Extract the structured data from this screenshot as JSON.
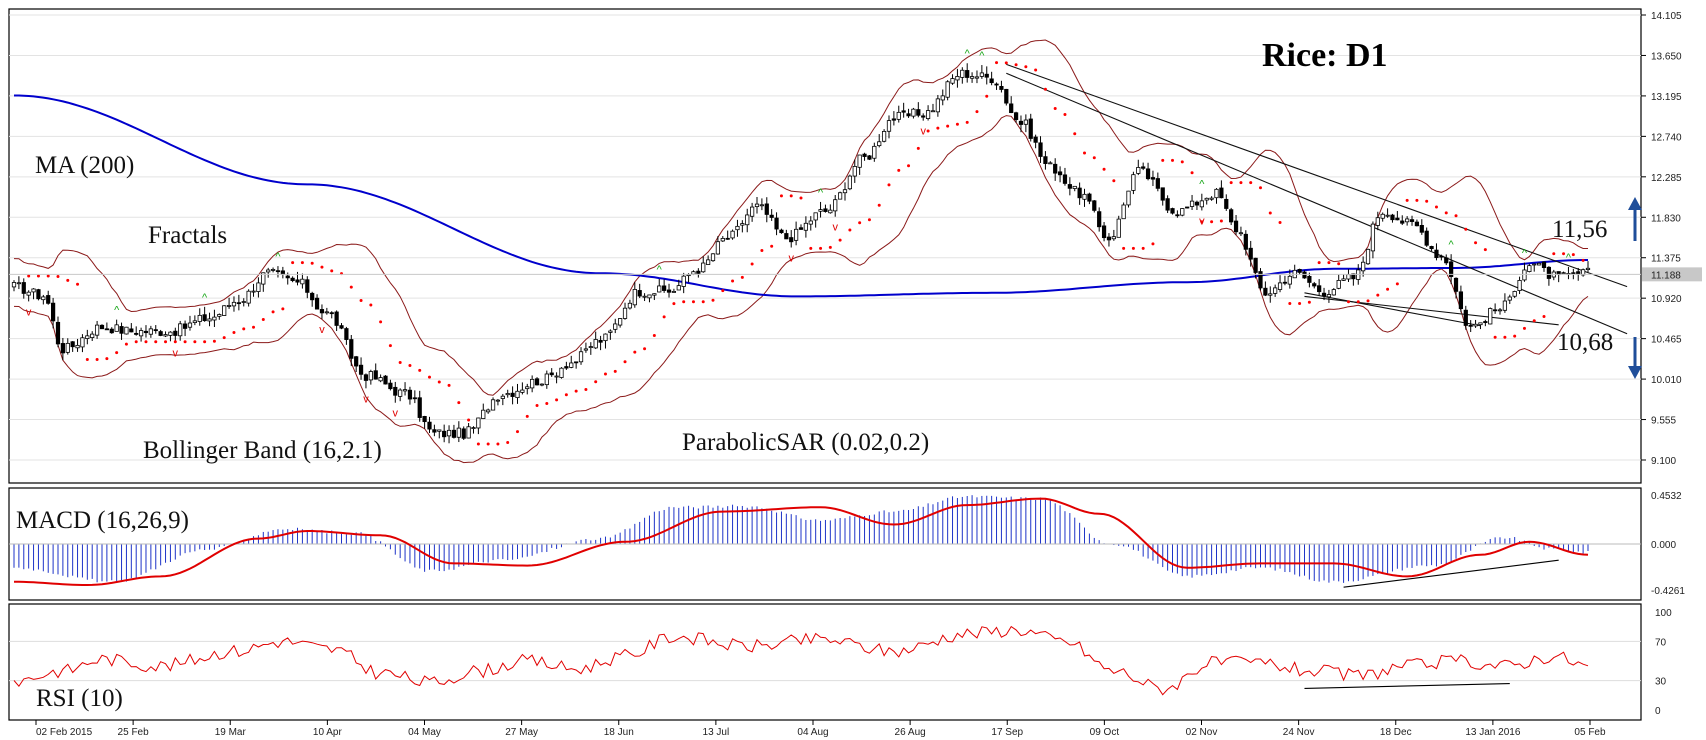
{
  "chart_data": {
    "type": "candlestick",
    "title": "Rice: D1",
    "colors": {
      "up": "#ffffff",
      "down": "#000000",
      "ma": "#0000cc",
      "bands": "#8b1a1a",
      "sar": "#ff0000",
      "macd_hist": "#1d33c8",
      "macd_signal": "#e00000",
      "rsi": "#e00000",
      "fractal_up": "#1aa81a",
      "fractal_down": "#e00000",
      "arrow": "#1f4e9a"
    },
    "price_axis": {
      "ticks": [
        "14.105",
        "13.650",
        "13.195",
        "12.740",
        "12.285",
        "11.830",
        "11.375",
        "10.920",
        "10.465",
        "10.010",
        "9.555",
        "9.100"
      ],
      "current": "11.188"
    },
    "x_labels": [
      "02 Feb 2015",
      "25 Feb",
      "19 Mar",
      "10 Apr",
      "04 May",
      "27 May",
      "18 Jun",
      "13 Jul",
      "04 Aug",
      "26 Aug",
      "17 Sep",
      "09 Oct",
      "02 Nov",
      "24 Nov",
      "18 Dec",
      "13 Jan 2016",
      "05 Feb"
    ],
    "annotations": {
      "ma": "MA (200)",
      "fractals": "Fractals",
      "bollinger": "Bollinger Band (16,2.1)",
      "sar": "ParabolicSAR (0.02,0.2)",
      "macd": "MACD (16,26,9)",
      "rsi": "RSI (10)",
      "resistance": "11,56",
      "support": "10,68"
    },
    "macd_axis": [
      "0.4532",
      "0.000",
      "-0.4261"
    ],
    "rsi_axis": [
      "100",
      "70",
      "30",
      "0"
    ],
    "price_anchors": [
      [
        0,
        11.05
      ],
      [
        6,
        10.95
      ],
      [
        10,
        10.35
      ],
      [
        18,
        10.6
      ],
      [
        24,
        10.55
      ],
      [
        32,
        10.55
      ],
      [
        40,
        10.7
      ],
      [
        46,
        10.9
      ],
      [
        52,
        11.2
      ],
      [
        58,
        11.1
      ],
      [
        64,
        10.75
      ],
      [
        72,
        10.05
      ],
      [
        80,
        9.85
      ],
      [
        86,
        9.4
      ],
      [
        92,
        9.4
      ],
      [
        100,
        9.85
      ],
      [
        108,
        10.0
      ],
      [
        114,
        10.2
      ],
      [
        120,
        10.45
      ],
      [
        128,
        11.0
      ],
      [
        134,
        11.0
      ],
      [
        140,
        11.25
      ],
      [
        146,
        11.6
      ],
      [
        152,
        11.95
      ],
      [
        158,
        11.6
      ],
      [
        166,
        11.9
      ],
      [
        174,
        12.5
      ],
      [
        180,
        12.95
      ],
      [
        186,
        13.0
      ],
      [
        194,
        13.45
      ],
      [
        200,
        13.4
      ],
      [
        206,
        12.9
      ],
      [
        212,
        12.4
      ],
      [
        218,
        12.1
      ],
      [
        224,
        11.6
      ],
      [
        230,
        12.35
      ],
      [
        238,
        11.9
      ],
      [
        246,
        12.1
      ],
      [
        250,
        11.7
      ],
      [
        256,
        10.98
      ],
      [
        262,
        11.2
      ],
      [
        268,
        11.0
      ],
      [
        274,
        11.15
      ],
      [
        280,
        11.9
      ],
      [
        286,
        11.75
      ],
      [
        292,
        11.4
      ],
      [
        298,
        10.6
      ],
      [
        304,
        10.8
      ],
      [
        310,
        11.3
      ],
      [
        316,
        11.15
      ],
      [
        322,
        11.2
      ]
    ],
    "ma200_anchors": [
      [
        0,
        13.2
      ],
      [
        60,
        12.2
      ],
      [
        120,
        11.2
      ],
      [
        160,
        10.94
      ],
      [
        200,
        10.98
      ],
      [
        240,
        11.1
      ],
      [
        270,
        11.25
      ],
      [
        295,
        11.26
      ],
      [
        322,
        11.35
      ]
    ],
    "macd_hist_anchors": [
      [
        0,
        -0.22
      ],
      [
        20,
        -0.35
      ],
      [
        40,
        -0.05
      ],
      [
        55,
        0.14
      ],
      [
        70,
        0.1
      ],
      [
        85,
        -0.25
      ],
      [
        100,
        -0.15
      ],
      [
        120,
        0.05
      ],
      [
        135,
        0.34
      ],
      [
        150,
        0.35
      ],
      [
        165,
        0.22
      ],
      [
        180,
        0.3
      ],
      [
        195,
        0.44
      ],
      [
        210,
        0.42
      ],
      [
        225,
        0.0
      ],
      [
        240,
        -0.3
      ],
      [
        255,
        -0.22
      ],
      [
        270,
        -0.35
      ],
      [
        290,
        -0.2
      ],
      [
        305,
        0.06
      ],
      [
        315,
        -0.05
      ],
      [
        322,
        -0.08
      ]
    ],
    "macd_signal_anchors": [
      [
        0,
        -0.35
      ],
      [
        15,
        -0.38
      ],
      [
        30,
        -0.3
      ],
      [
        50,
        0.05
      ],
      [
        60,
        0.12
      ],
      [
        75,
        0.08
      ],
      [
        90,
        -0.18
      ],
      [
        105,
        -0.2
      ],
      [
        125,
        0.02
      ],
      [
        145,
        0.3
      ],
      [
        165,
        0.34
      ],
      [
        180,
        0.18
      ],
      [
        195,
        0.36
      ],
      [
        210,
        0.42
      ],
      [
        222,
        0.28
      ],
      [
        240,
        -0.22
      ],
      [
        255,
        -0.18
      ],
      [
        270,
        -0.18
      ],
      [
        285,
        -0.3
      ],
      [
        300,
        -0.1
      ],
      [
        310,
        0.02
      ],
      [
        322,
        -0.1
      ]
    ],
    "rsi_anchors": [
      [
        0,
        30
      ],
      [
        10,
        40
      ],
      [
        18,
        52
      ],
      [
        30,
        45
      ],
      [
        45,
        60
      ],
      [
        55,
        70
      ],
      [
        65,
        62
      ],
      [
        75,
        38
      ],
      [
        85,
        28
      ],
      [
        95,
        40
      ],
      [
        105,
        50
      ],
      [
        115,
        42
      ],
      [
        125,
        55
      ],
      [
        135,
        75
      ],
      [
        150,
        65
      ],
      [
        165,
        72
      ],
      [
        180,
        60
      ],
      [
        195,
        78
      ],
      [
        205,
        82
      ],
      [
        215,
        70
      ],
      [
        225,
        40
      ],
      [
        235,
        22
      ],
      [
        245,
        48
      ],
      [
        255,
        48
      ],
      [
        265,
        40
      ],
      [
        275,
        35
      ],
      [
        285,
        45
      ],
      [
        295,
        50
      ],
      [
        305,
        45
      ],
      [
        315,
        55
      ],
      [
        322,
        45
      ]
    ]
  }
}
